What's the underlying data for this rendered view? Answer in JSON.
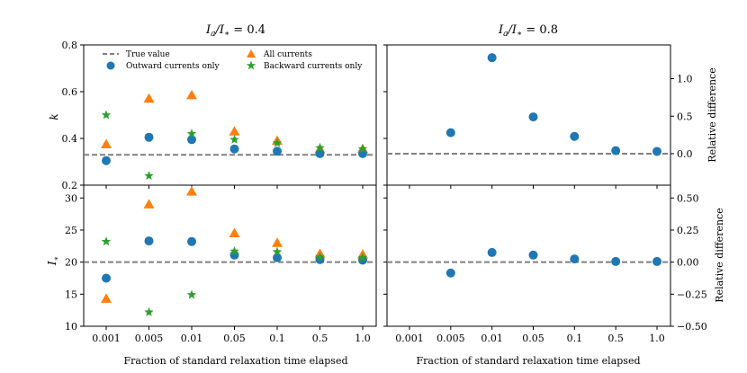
{
  "colors": {
    "all": "#ff7f0e",
    "outward": "#1f77b4",
    "backward": "#2ca02c",
    "true_line": "#808080"
  },
  "panel_titles": [
    "I_a/I_* = 0.4",
    "I_a/I_* = 0.8"
  ],
  "legend": {
    "true_value": "True value",
    "outward": "Outward currents only",
    "all": "All currents",
    "backward": "Backward currents only",
    "placement": "top"
  },
  "x_axis_label": "Fraction of standard relaxation time elapsed",
  "x_ticks": [
    "0.001",
    "0.005",
    "0.01",
    "0.05",
    "0.1",
    "0.5",
    "1.0"
  ],
  "right_axis_label": "Relative difference",
  "chart_data": [
    {
      "panel": "top-left",
      "type": "scatter",
      "ylabel": "k",
      "ylim": [
        0.2,
        0.8
      ],
      "yticks": [
        "0.2",
        "0.4",
        "0.6",
        "0.8"
      ],
      "true_value": 0.33,
      "series": [
        {
          "name": "All currents",
          "marker": "triangle",
          "x": [
            "0.001",
            "0.005",
            "0.01",
            "0.05",
            "0.1",
            "0.5",
            "1.0"
          ],
          "y": [
            0.375,
            0.57,
            0.585,
            0.43,
            0.39,
            0.355,
            0.355
          ]
        },
        {
          "name": "Outward currents only",
          "marker": "circle",
          "x": [
            "0.001",
            "0.005",
            "0.01",
            "0.05",
            "0.1",
            "0.5",
            "1.0"
          ],
          "y": [
            0.305,
            0.405,
            0.395,
            0.355,
            0.345,
            0.335,
            0.335
          ]
        },
        {
          "name": "Backward currents only",
          "marker": "star",
          "x": [
            "0.001",
            "0.005",
            "0.01",
            "0.05",
            "0.1",
            "0.5",
            "1.0"
          ],
          "y": [
            0.5,
            0.24,
            0.42,
            0.395,
            0.38,
            0.36,
            0.355
          ]
        }
      ]
    },
    {
      "panel": "top-right",
      "type": "scatter",
      "ylabel": "Relative difference",
      "ylim": [
        -0.42,
        1.45
      ],
      "yticks": [
        "0.0",
        "0.5",
        "1.0"
      ],
      "true_value": 0.0,
      "series": [
        {
          "name": "Outward currents only",
          "marker": "circle",
          "x": [
            "0.005",
            "0.01",
            "0.05",
            "0.1",
            "0.5",
            "1.0"
          ],
          "y": [
            0.28,
            1.28,
            0.49,
            0.23,
            0.04,
            0.03
          ]
        }
      ]
    },
    {
      "panel": "bottom-left",
      "type": "scatter",
      "ylabel": "I_*",
      "ylim": [
        10,
        32
      ],
      "yticks": [
        "10",
        "15",
        "20",
        "25",
        "30"
      ],
      "true_value": 20,
      "series": [
        {
          "name": "All currents",
          "marker": "triangle",
          "x": [
            "0.001",
            "0.005",
            "0.01",
            "0.05",
            "0.1",
            "0.5",
            "1.0"
          ],
          "y": [
            14.3,
            29.0,
            31.0,
            24.5,
            23.0,
            21.3,
            21.2
          ]
        },
        {
          "name": "Outward currents only",
          "marker": "circle",
          "x": [
            "0.001",
            "0.005",
            "0.01",
            "0.05",
            "0.1",
            "0.5",
            "1.0"
          ],
          "y": [
            17.5,
            23.3,
            23.2,
            21.1,
            20.7,
            20.4,
            20.3
          ]
        },
        {
          "name": "Backward currents only",
          "marker": "star",
          "x": [
            "0.001",
            "0.005",
            "0.01",
            "0.05",
            "0.1",
            "0.5",
            "1.0"
          ],
          "y": [
            23.2,
            12.2,
            14.9,
            21.7,
            21.6,
            20.8,
            20.7
          ]
        }
      ]
    },
    {
      "panel": "bottom-right",
      "type": "scatter",
      "ylabel": "Relative difference",
      "ylim": [
        -0.5,
        0.6
      ],
      "yticks": [
        "-0.50",
        "-0.25",
        "0.00",
        "0.25",
        "0.50"
      ],
      "true_value": 0.0,
      "series": [
        {
          "name": "Outward currents only",
          "marker": "circle",
          "x": [
            "0.005",
            "0.01",
            "0.05",
            "0.1",
            "0.5",
            "1.0"
          ],
          "y": [
            -0.085,
            0.075,
            0.055,
            0.025,
            0.005,
            0.005
          ]
        }
      ]
    }
  ]
}
